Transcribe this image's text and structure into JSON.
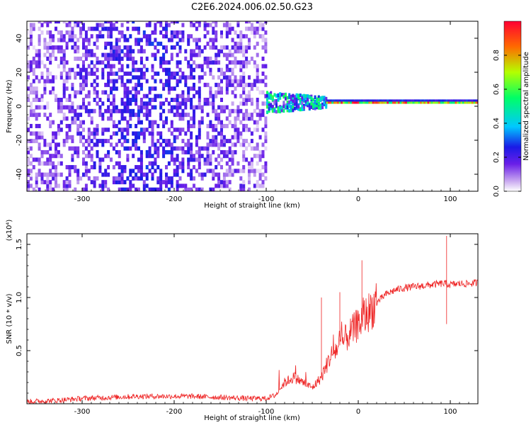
{
  "title": "C2E6.2024.006.02.50.G23",
  "chart_data": [
    {
      "type": "heatmap",
      "xlabel": "Height of straight line (km)",
      "ylabel": "Frequency (Hz)",
      "xlim": [
        -360,
        130
      ],
      "ylim": [
        -50,
        50
      ],
      "xticks": [
        -300,
        -200,
        -100,
        0,
        100
      ],
      "xtick_labels": [
        "-300",
        "-200",
        "-100",
        "0",
        "100"
      ],
      "yticks": [
        -40,
        -20,
        0,
        20,
        40
      ],
      "ytick_labels": [
        "-40",
        "-20",
        "0",
        "20",
        "40"
      ],
      "colorbar": {
        "label": "Normalized spectral amplitude",
        "range": [
          0,
          1
        ],
        "ticks": [
          0.0,
          0.2,
          0.4,
          0.6,
          0.8
        ],
        "tick_labels": [
          "0.0",
          "0.2",
          "0.4",
          "0.6",
          "0.8"
        ],
        "colormap": [
          "#ffffff",
          "#c9a8f0",
          "#6a1fe8",
          "#1a1ae6",
          "#00c8ff",
          "#00ff66",
          "#b4ff00",
          "#ff6a00",
          "#ff0033"
        ]
      },
      "regions": [
        {
          "x_range": [
            -360,
            -100
          ],
          "freq_range": [
            -50,
            50
          ],
          "amplitude_range": [
            0.0,
            0.2
          ],
          "pattern": "broadband scattered noise"
        },
        {
          "x_range": [
            -100,
            -35
          ],
          "center_freq": 2,
          "spread_hz": 12,
          "amplitude_range": [
            0.1,
            0.6
          ]
        },
        {
          "x_range": [
            -35,
            130
          ],
          "center_freq": 2,
          "spread_hz": 2,
          "amplitude_range": [
            0.5,
            1.0
          ],
          "pattern": "narrow carrier line"
        }
      ],
      "grid": false
    },
    {
      "type": "line",
      "xlabel": "Height of straight line (km)",
      "ylabel": "SNR (10 * v/v)",
      "y_multiplier": "(x10⁴)",
      "xlim": [
        -360,
        130
      ],
      "ylim": [
        0,
        1.6
      ],
      "xticks": [
        -300,
        -200,
        -100,
        0,
        100
      ],
      "xtick_labels": [
        "-300",
        "-200",
        "-100",
        "0",
        "100"
      ],
      "yticks": [
        0.5,
        1.0,
        1.5
      ],
      "ytick_labels": [
        "0.5",
        "1.0",
        "1.5"
      ],
      "series": [
        {
          "color": "#ee2222",
          "x": [
            -360,
            -330,
            -300,
            -270,
            -240,
            -210,
            -180,
            -150,
            -120,
            -100,
            -90,
            -80,
            -70,
            -60,
            -50,
            -40,
            -30,
            -20,
            -10,
            0,
            10,
            20,
            30,
            40,
            50,
            60,
            70,
            80,
            90,
            95,
            100,
            110,
            120,
            130
          ],
          "y": [
            0.02,
            0.03,
            0.05,
            0.06,
            0.07,
            0.07,
            0.07,
            0.06,
            0.05,
            0.05,
            0.08,
            0.2,
            0.25,
            0.2,
            0.15,
            0.25,
            0.45,
            0.55,
            0.65,
            0.75,
            0.85,
            0.95,
            1.03,
            1.07,
            1.09,
            1.1,
            1.11,
            1.12,
            1.13,
            1.13,
            1.12,
            1.13,
            1.13,
            1.14
          ],
          "spikes": [
            [
              4,
              1.35
            ],
            [
              96,
              1.58
            ],
            [
              96,
              0.75
            ],
            [
              -40,
              1.0
            ],
            [
              -20,
              1.05
            ]
          ]
        }
      ],
      "grid": false
    }
  ]
}
